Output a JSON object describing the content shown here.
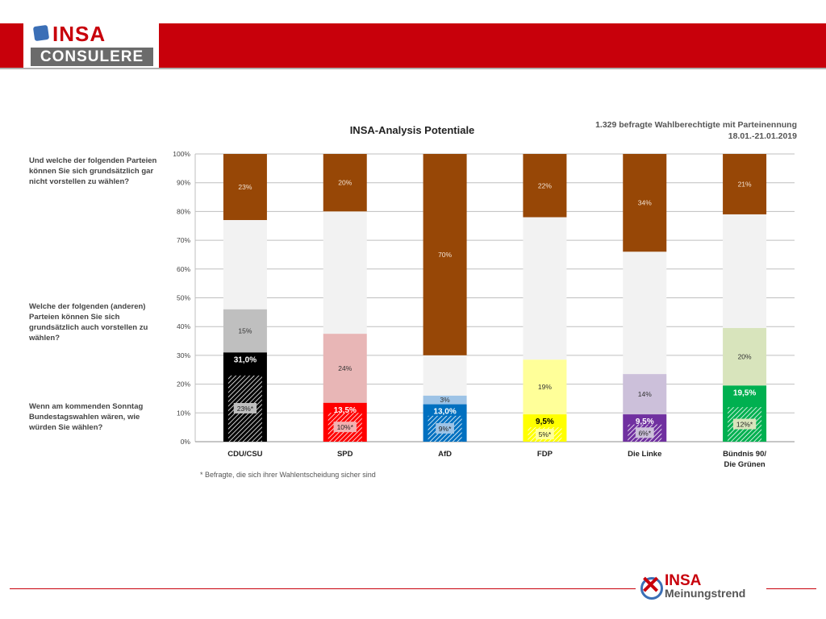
{
  "header": {
    "logo_top": "INSA",
    "logo_bottom": "CONSULERE"
  },
  "questions": [
    "Und welche der folgenden Parteien können Sie sich grundsätzlich gar nicht vorstellen zu wählen?",
    "Welche der folgenden (anderen) Parteien können Sie sich grundsätzlich auch vorstellen zu wählen?",
    "Wenn am kommenden Sonntag Bundestagswahlen wären, wie würden Sie wählen?"
  ],
  "sample": {
    "line1": "1.329 befragte Wahlberechtigte mit Parteinennung",
    "line2": "18.01.-21.01.2019"
  },
  "footnote": "* Befragte, die sich ihrer Wahlentscheidung sicher sind",
  "brand": {
    "name": "INSA",
    "sub": "Meinungstrend"
  },
  "chart_data": {
    "type": "bar",
    "stacked": true,
    "title": "INSA-Analysis Potentiale",
    "ylim": [
      0,
      100
    ],
    "yticks": [
      "0%",
      "10%",
      "20%",
      "30%",
      "40%",
      "50%",
      "60%",
      "70%",
      "80%",
      "90%",
      "100%"
    ],
    "grid": true,
    "categories": [
      {
        "line1": "CDU/CSU",
        "line2": ""
      },
      {
        "line1": "SPD",
        "line2": ""
      },
      {
        "line1": "AfD",
        "line2": ""
      },
      {
        "line1": "FDP",
        "line2": ""
      },
      {
        "line1": "Die Linke",
        "line2": ""
      },
      {
        "line1": "Bündnis 90/",
        "line2": "Die Grünen"
      }
    ],
    "parties": [
      {
        "vote": 31.0,
        "sure": 23,
        "potential": 15,
        "never": 23,
        "vote_label": "31,0%",
        "sure_label": "23%*",
        "potential_label": "15%",
        "never_label": "23%",
        "vote_color": "#000000",
        "potential_color": "#bfbfbf",
        "vote_text": "#ffffff",
        "sure_box": "#bfbfbf"
      },
      {
        "vote": 13.5,
        "sure": 10,
        "potential": 24,
        "never": 20,
        "vote_label": "13,5%",
        "sure_label": "10%*",
        "potential_label": "24%",
        "never_label": "20%",
        "vote_color": "#ff0000",
        "potential_color": "#e8b6b6",
        "vote_text": "#ffffff",
        "sure_box": "#f3b0b0"
      },
      {
        "vote": 13.0,
        "sure": 9,
        "potential": 3,
        "never": 70,
        "vote_label": "13,0%",
        "sure_label": "9%*",
        "potential_label": "3%",
        "never_label": "70%",
        "vote_color": "#0070c0",
        "potential_color": "#9dc3e6",
        "vote_text": "#ffffff",
        "sure_box": "#9dc3e6"
      },
      {
        "vote": 9.5,
        "sure": 5,
        "potential": 19,
        "never": 22,
        "vote_label": "9,5%",
        "sure_label": "5%*",
        "potential_label": "19%",
        "never_label": "22%",
        "vote_color": "#ffff00",
        "potential_color": "#ffff99",
        "vote_text": "#000000",
        "sure_box": "#ffff99"
      },
      {
        "vote": 9.5,
        "sure": 6,
        "potential": 14,
        "never": 34,
        "vote_label": "9,5%",
        "sure_label": "6%*",
        "potential_label": "14%",
        "never_label": "34%",
        "vote_color": "#7030a0",
        "potential_color": "#ccc0da",
        "vote_text": "#ffffff",
        "sure_box": "#ccc0da"
      },
      {
        "vote": 19.5,
        "sure": 12,
        "potential": 20,
        "never": 21,
        "vote_label": "19,5%",
        "sure_label": "12%*",
        "potential_label": "20%",
        "never_label": "21%",
        "vote_color": "#00b050",
        "potential_color": "#d8e4bc",
        "vote_text": "#ffffff",
        "sure_box": "#d8e4bc"
      }
    ],
    "colors": {
      "never": "#974706",
      "rest": "#f2f2f2",
      "grid": "#bfbfbf"
    }
  }
}
